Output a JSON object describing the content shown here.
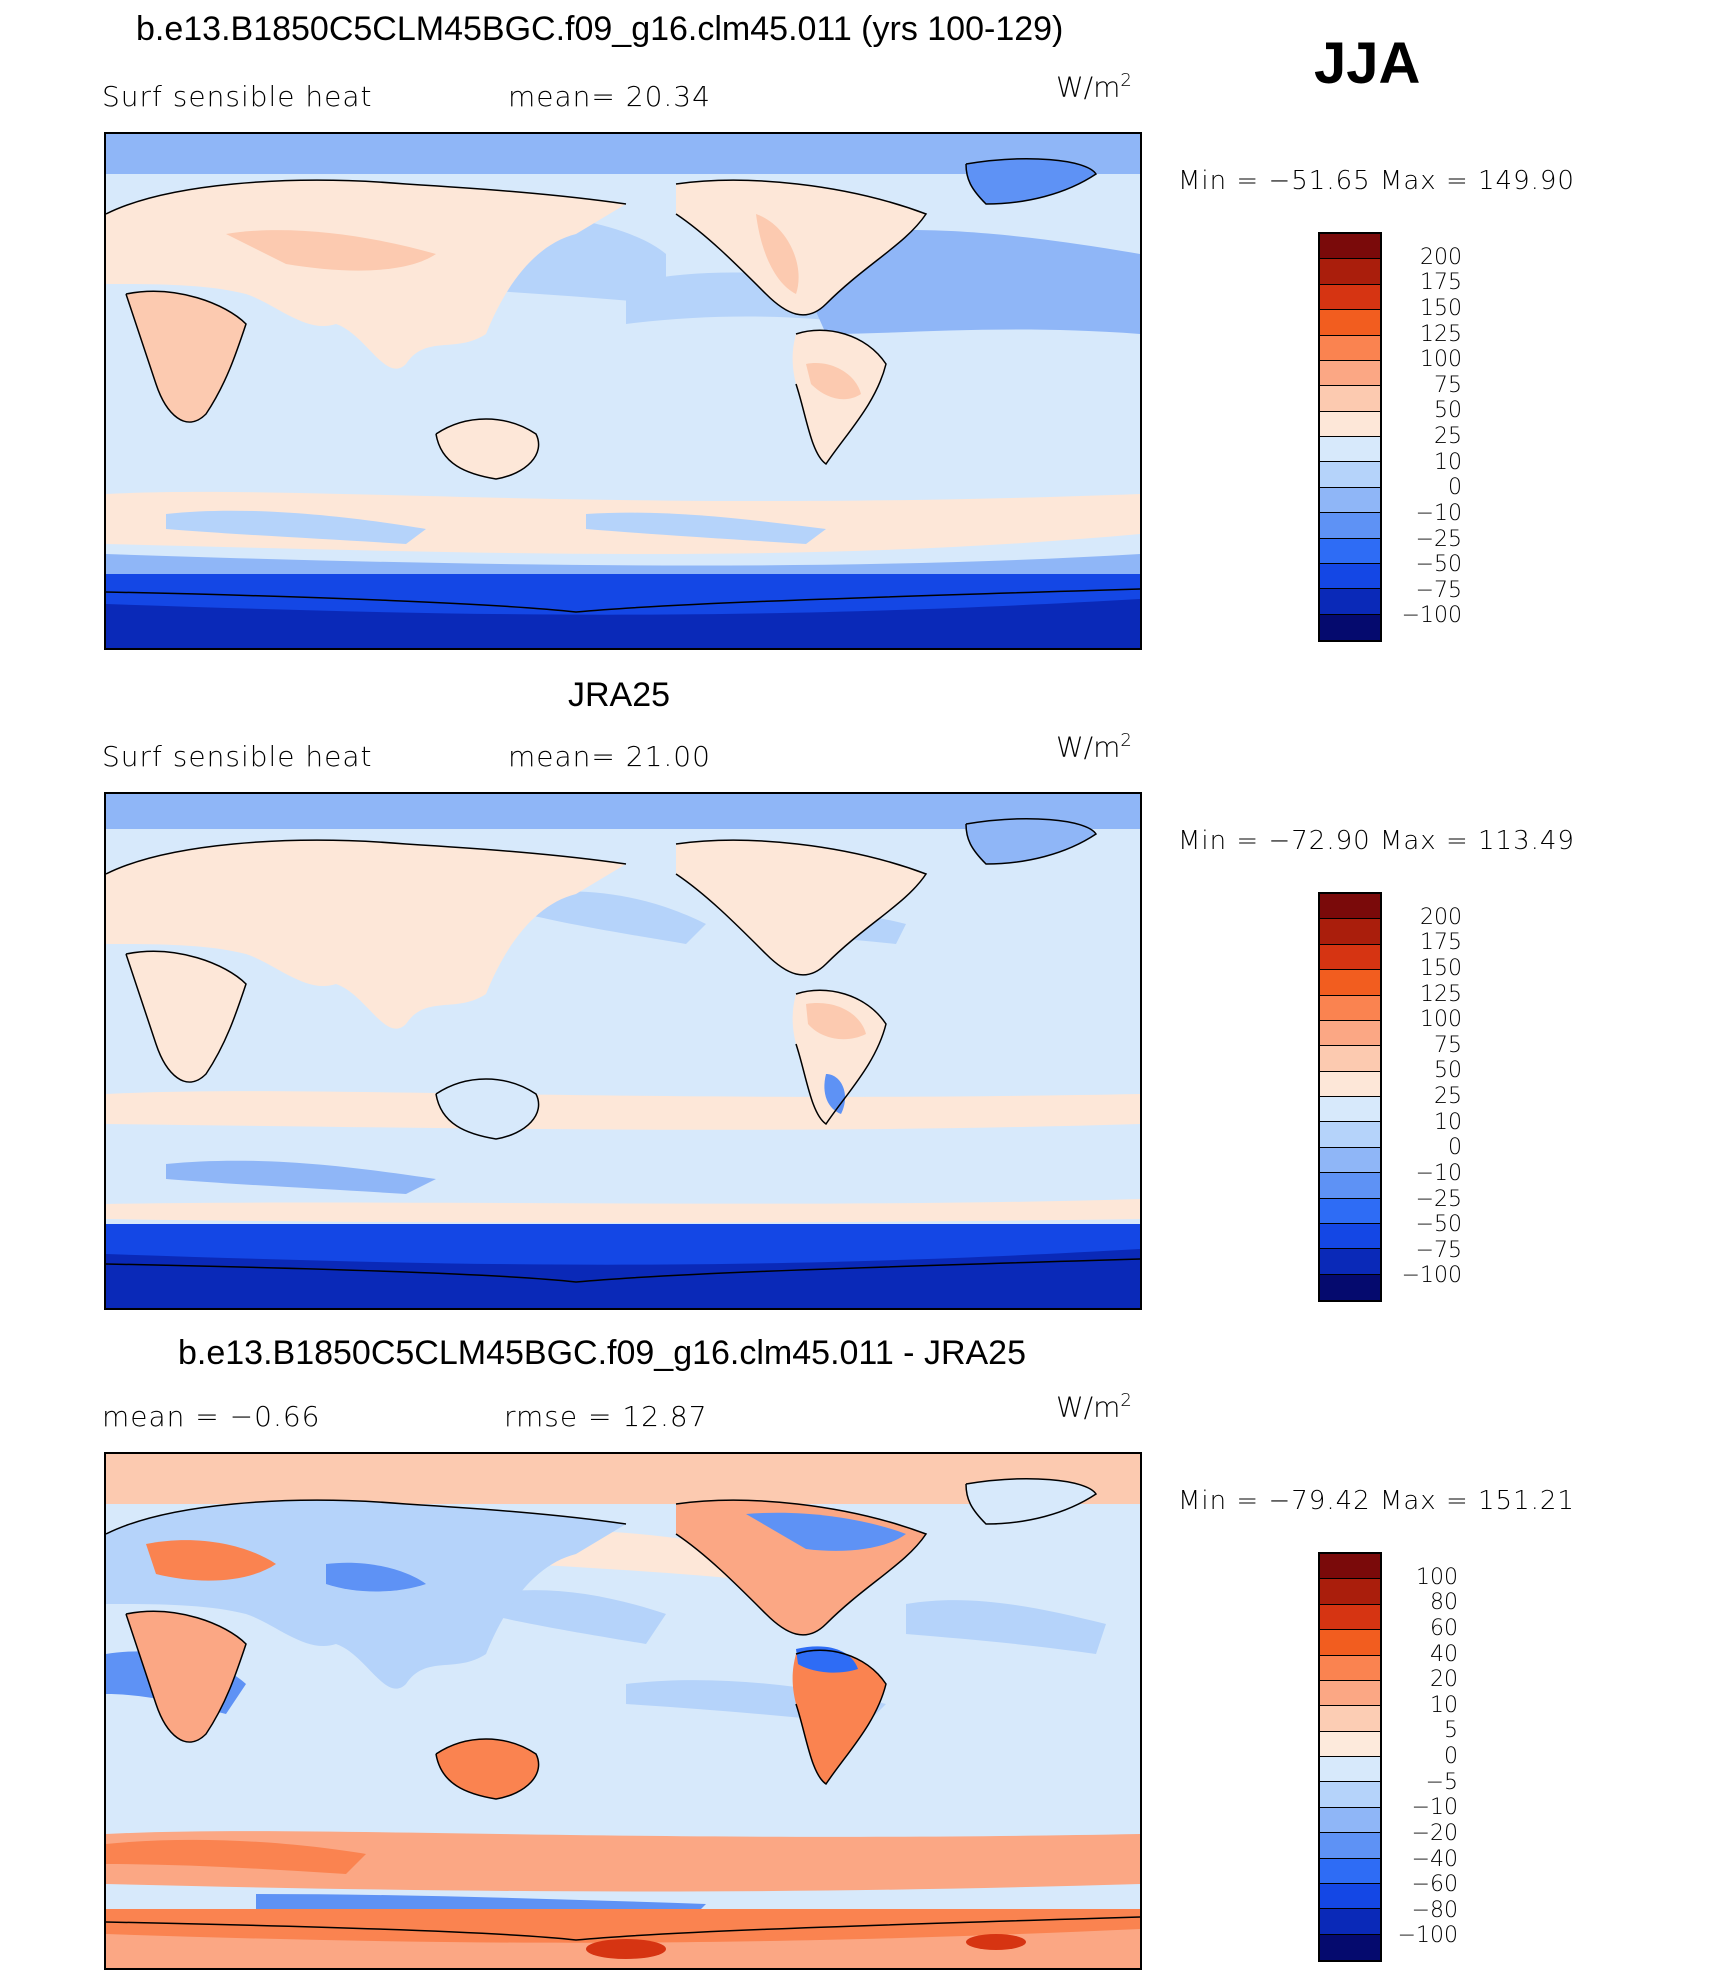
{
  "season": "JJA",
  "colors": {
    "abs_scale": [
      "#050a6e",
      "#0a29b8",
      "#1447e5",
      "#2e6cf5",
      "#5e92f5",
      "#8fb6f7",
      "#b5d3fa",
      "#d7e9fb",
      "#fde7d8",
      "#fccab0",
      "#fba784",
      "#fa8350",
      "#f25d1f",
      "#d63412",
      "#aa1e0c",
      "#7a0a0a"
    ],
    "diff_scale": [
      "#050a6e",
      "#0a29b8",
      "#1447e5",
      "#2e6cf5",
      "#5e92f5",
      "#8fb6f7",
      "#b5d3fa",
      "#d7e9fb",
      "#fdeadc",
      "#fccdb4",
      "#fba784",
      "#fa8350",
      "#f25d1f",
      "#d63412",
      "#aa1e0c",
      "#7a0a0a"
    ]
  },
  "panels": [
    {
      "id": "model",
      "title": "b.e13.B1850C5CLM45BGC.f09_g16.clm45.011 (yrs 100-129)",
      "left_label": "Surf  sensible  heat",
      "center_label": "mean=   20.34",
      "units": "W/m",
      "units_sup": "2",
      "minmax": "Min  =  −51.65  Max  =  149.90",
      "colorbar_labels": [
        "200",
        "175",
        "150",
        "125",
        "100",
        "75",
        "50",
        "25",
        "10",
        "0",
        "−10",
        "−25",
        "−50",
        "−75",
        "−100"
      ]
    },
    {
      "id": "obs",
      "title": "JRA25",
      "left_label": "Surf  sensible  heat",
      "center_label": "mean=   21.00",
      "units": "W/m",
      "units_sup": "2",
      "minmax": "Min  =  −72.90  Max  =  113.49",
      "colorbar_labels": [
        "200",
        "175",
        "150",
        "125",
        "100",
        "75",
        "50",
        "25",
        "10",
        "0",
        "−10",
        "−25",
        "−50",
        "−75",
        "−100"
      ]
    },
    {
      "id": "diff",
      "title": "b.e13.B1850C5CLM45BGC.f09_g16.clm45.011 - JRA25",
      "left_label": "mean  =    −0.66",
      "center_label": "rmse  =    12.87",
      "units": "W/m",
      "units_sup": "2",
      "minmax": "Min  =  −79.42  Max  =  151.21",
      "colorbar_labels": [
        "100",
        "80",
        "60",
        "40",
        "20",
        "10",
        "5",
        "0",
        "−5",
        "−10",
        "−20",
        "−40",
        "−60",
        "−80",
        "−100"
      ]
    }
  ]
}
